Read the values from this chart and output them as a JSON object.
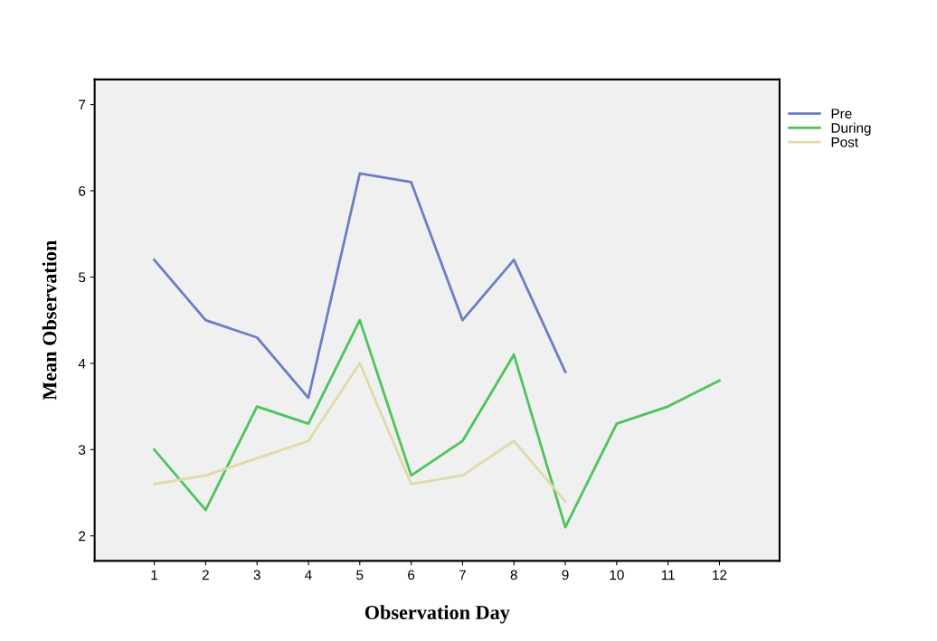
{
  "chart_data": {
    "type": "line",
    "xlabel": "Observation Day",
    "ylabel": "Mean Observation",
    "x": [
      1,
      2,
      3,
      4,
      5,
      6,
      7,
      8,
      9,
      10,
      11,
      12
    ],
    "series": [
      {
        "name": "Pre",
        "color": "#6b7dc4",
        "values": [
          5.2,
          4.5,
          4.3,
          3.6,
          6.2,
          6.1,
          4.5,
          5.2,
          3.9,
          null,
          null,
          null
        ]
      },
      {
        "name": "During",
        "color": "#4cc45a",
        "values": [
          3.0,
          2.3,
          3.5,
          3.3,
          4.5,
          2.7,
          3.1,
          4.1,
          2.1,
          3.3,
          3.5,
          3.8
        ]
      },
      {
        "name": "Post",
        "color": "#e0d9a8",
        "values": [
          2.6,
          2.7,
          2.9,
          3.1,
          4.0,
          2.6,
          2.7,
          3.1,
          2.4,
          null,
          null,
          null
        ]
      }
    ],
    "xlim": [
      -0.16,
      13.17
    ],
    "xticks": [
      1,
      2,
      3,
      4,
      5,
      6,
      7,
      8,
      9,
      10,
      11,
      12
    ],
    "ylim": [
      1.71,
      7.29
    ],
    "yticks": [
      2,
      3,
      4,
      5,
      6,
      7
    ],
    "grid": false,
    "legend": "top right",
    "marker": "none",
    "line_style": "solid"
  }
}
